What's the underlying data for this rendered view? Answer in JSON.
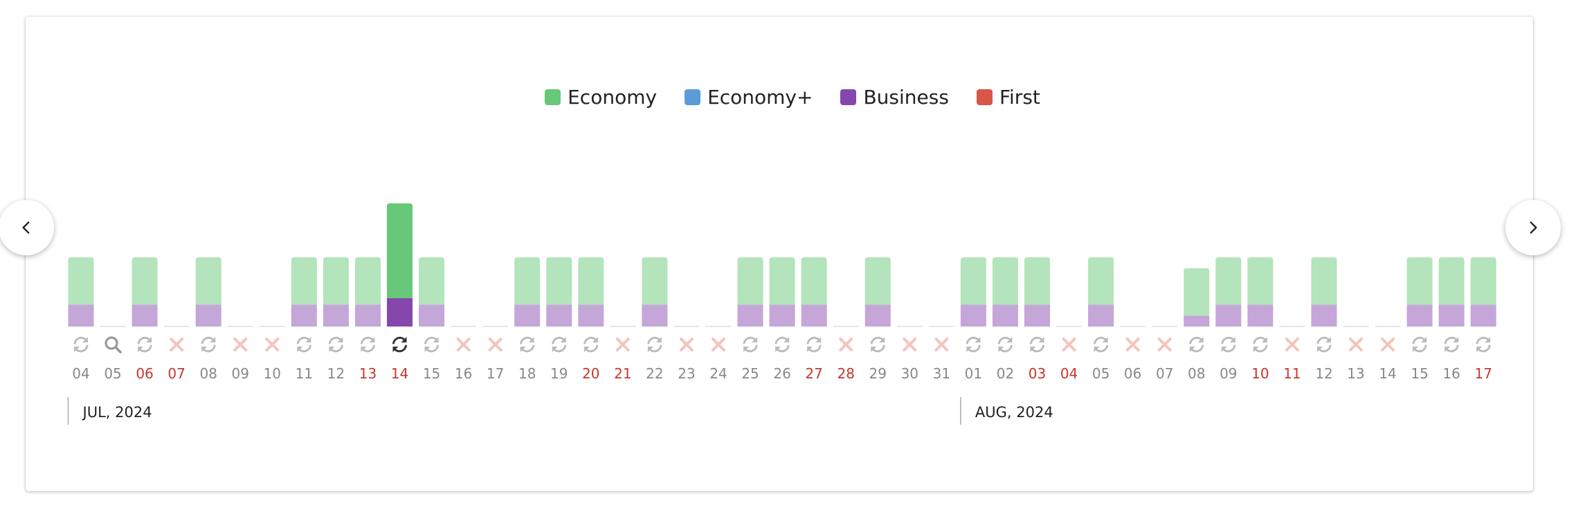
{
  "legend": {
    "items": [
      {
        "label": "Economy",
        "color": "#66c878"
      },
      {
        "label": "Economy+",
        "color": "#5b9bd9"
      },
      {
        "label": "Business",
        "color": "#8547ac"
      },
      {
        "label": "First",
        "color": "#d9574a"
      }
    ]
  },
  "navigation": {
    "prev_icon": "chevron-left-icon",
    "next_icon": "chevron-right-icon"
  },
  "chart_data": {
    "type": "bar",
    "stacked": true,
    "selected_day": "14",
    "colors": {
      "economy_light": "#b3e4bb",
      "business_light": "#c4a6d8",
      "economy_selected": "#66c878",
      "business_selected": "#8547ac",
      "weekend_text": "#c8372d",
      "weekday_text": "#888888",
      "status_refresh": "#bbbbbb",
      "status_refresh_selected": "#333333",
      "status_none": "#f4c4bf",
      "status_search": "#999999"
    },
    "months": [
      {
        "label": "JUL, 2024",
        "start_index": 0
      },
      {
        "label": "AUG, 2024",
        "start_index": 28
      }
    ],
    "days": [
      {
        "label": "04",
        "weekend": false,
        "status": "refresh",
        "economy": 1,
        "business": 1
      },
      {
        "label": "05",
        "weekend": false,
        "status": "search",
        "economy": 0,
        "business": 0
      },
      {
        "label": "06",
        "weekend": true,
        "status": "refresh",
        "economy": 1,
        "business": 1
      },
      {
        "label": "07",
        "weekend": true,
        "status": "none",
        "economy": 0,
        "business": 0
      },
      {
        "label": "08",
        "weekend": false,
        "status": "refresh",
        "economy": 1,
        "business": 1
      },
      {
        "label": "09",
        "weekend": false,
        "status": "none",
        "economy": 0,
        "business": 0
      },
      {
        "label": "10",
        "weekend": false,
        "status": "none",
        "economy": 0,
        "business": 0
      },
      {
        "label": "11",
        "weekend": false,
        "status": "refresh",
        "economy": 1,
        "business": 1
      },
      {
        "label": "12",
        "weekend": false,
        "status": "refresh",
        "economy": 1,
        "business": 1
      },
      {
        "label": "13",
        "weekend": true,
        "status": "refresh",
        "economy": 1,
        "business": 1
      },
      {
        "label": "14",
        "weekend": true,
        "status": "refresh",
        "economy": 2,
        "business": 1.3
      },
      {
        "label": "15",
        "weekend": false,
        "status": "refresh",
        "economy": 1,
        "business": 1
      },
      {
        "label": "16",
        "weekend": false,
        "status": "none",
        "economy": 0,
        "business": 0
      },
      {
        "label": "17",
        "weekend": false,
        "status": "none",
        "economy": 0,
        "business": 0
      },
      {
        "label": "18",
        "weekend": false,
        "status": "refresh",
        "economy": 1,
        "business": 1
      },
      {
        "label": "19",
        "weekend": false,
        "status": "refresh",
        "economy": 1,
        "business": 1
      },
      {
        "label": "20",
        "weekend": true,
        "status": "refresh",
        "economy": 1,
        "business": 1
      },
      {
        "label": "21",
        "weekend": true,
        "status": "none",
        "economy": 0,
        "business": 0
      },
      {
        "label": "22",
        "weekend": false,
        "status": "refresh",
        "economy": 1,
        "business": 1
      },
      {
        "label": "23",
        "weekend": false,
        "status": "none",
        "economy": 0,
        "business": 0
      },
      {
        "label": "24",
        "weekend": false,
        "status": "none",
        "economy": 0,
        "business": 0
      },
      {
        "label": "25",
        "weekend": false,
        "status": "refresh",
        "economy": 1,
        "business": 1
      },
      {
        "label": "26",
        "weekend": false,
        "status": "refresh",
        "economy": 1,
        "business": 1
      },
      {
        "label": "27",
        "weekend": true,
        "status": "refresh",
        "economy": 1,
        "business": 1
      },
      {
        "label": "28",
        "weekend": true,
        "status": "none",
        "economy": 0,
        "business": 0
      },
      {
        "label": "29",
        "weekend": false,
        "status": "refresh",
        "economy": 1,
        "business": 1
      },
      {
        "label": "30",
        "weekend": false,
        "status": "none",
        "economy": 0,
        "business": 0
      },
      {
        "label": "31",
        "weekend": false,
        "status": "none",
        "economy": 0,
        "business": 0
      },
      {
        "label": "01",
        "weekend": false,
        "status": "refresh",
        "economy": 1,
        "business": 1
      },
      {
        "label": "02",
        "weekend": false,
        "status": "refresh",
        "economy": 1,
        "business": 1
      },
      {
        "label": "03",
        "weekend": true,
        "status": "refresh",
        "economy": 1,
        "business": 1
      },
      {
        "label": "04",
        "weekend": true,
        "status": "none",
        "economy": 0,
        "business": 0
      },
      {
        "label": "05",
        "weekend": false,
        "status": "refresh",
        "economy": 1,
        "business": 1
      },
      {
        "label": "06",
        "weekend": false,
        "status": "none",
        "economy": 0,
        "business": 0
      },
      {
        "label": "07",
        "weekend": false,
        "status": "none",
        "economy": 0,
        "business": 0
      },
      {
        "label": "08",
        "weekend": false,
        "status": "refresh",
        "economy": 1,
        "business": 0.5
      },
      {
        "label": "09",
        "weekend": false,
        "status": "refresh",
        "economy": 1,
        "business": 1
      },
      {
        "label": "10",
        "weekend": true,
        "status": "refresh",
        "economy": 1,
        "business": 1
      },
      {
        "label": "11",
        "weekend": true,
        "status": "none",
        "economy": 0,
        "business": 0
      },
      {
        "label": "12",
        "weekend": false,
        "status": "refresh",
        "economy": 1,
        "business": 1
      },
      {
        "label": "13",
        "weekend": false,
        "status": "none",
        "economy": 0,
        "business": 0
      },
      {
        "label": "14",
        "weekend": false,
        "status": "none",
        "economy": 0,
        "business": 0
      },
      {
        "label": "15",
        "weekend": false,
        "status": "refresh",
        "economy": 1,
        "business": 1
      },
      {
        "label": "16",
        "weekend": false,
        "status": "refresh",
        "economy": 1,
        "business": 1
      },
      {
        "label": "17",
        "weekend": true,
        "status": "refresh",
        "economy": 1,
        "business": 1
      }
    ]
  }
}
